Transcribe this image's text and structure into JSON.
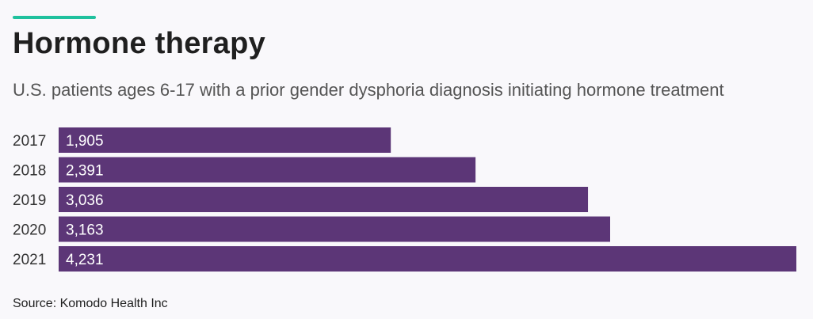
{
  "title": "Hormone therapy",
  "subtitle": "U.S. patients ages 6-17 with a prior gender dysphoria diagnosis initiating hormone treatment",
  "source": "Source: Komodo Health Inc",
  "colors": {
    "accent": "#20c19e",
    "bar": "#5c3677",
    "bar_label": "#ffffff",
    "axis_label": "#333333"
  },
  "chart_data": {
    "type": "bar",
    "orientation": "horizontal",
    "categories": [
      "2017",
      "2018",
      "2019",
      "2020",
      "2021"
    ],
    "values": [
      1905,
      2391,
      3036,
      3163,
      4231
    ],
    "value_labels": [
      "1,905",
      "2,391",
      "3,036",
      "3,163",
      "4,231"
    ],
    "xlim": [
      0,
      4231
    ],
    "grid": false,
    "legend": "none"
  }
}
